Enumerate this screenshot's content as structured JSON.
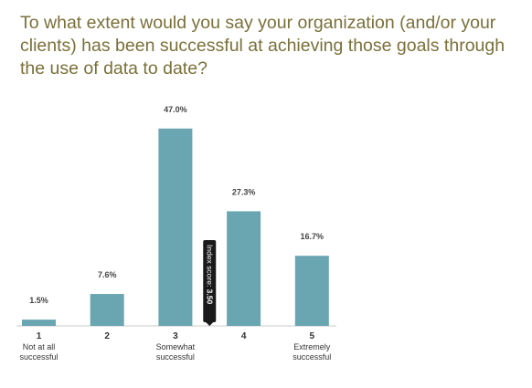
{
  "title": "To what extent would you say your organization (and/or your clients) has been successful at achieving those goals through the use of data to date?",
  "chart_data": {
    "type": "bar",
    "categories": [
      "1",
      "2",
      "3",
      "4",
      "5"
    ],
    "sublabels": [
      [
        "Not at all",
        "successful"
      ],
      [],
      [
        "Somewhat",
        "successful"
      ],
      [],
      [
        "Extremely",
        "successful"
      ]
    ],
    "values": [
      1.5,
      7.6,
      47.0,
      27.3,
      16.7
    ],
    "value_labels": [
      "1.5%",
      "7.6%",
      "47.0%",
      "27.3%",
      "16.7%"
    ],
    "ylim": [
      0,
      50
    ],
    "bar_color": "#6aa6b1",
    "index_marker": {
      "label": "Index score:",
      "value_text": "3.50",
      "value": 3.5
    }
  }
}
